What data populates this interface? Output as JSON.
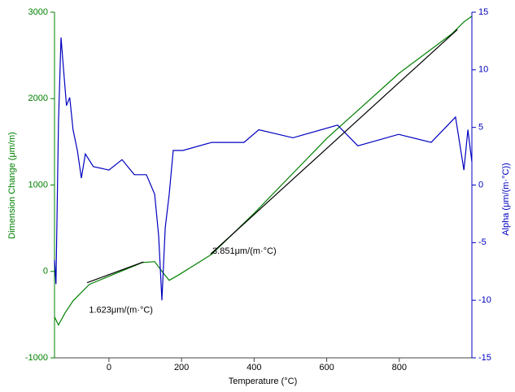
{
  "chart_data": {
    "type": "line",
    "xlabel": "Temperature (°C)",
    "ylabel": "Dimension Change (μm/m)",
    "y2label": "Alpha (μm/(m·°C))",
    "xlim": [
      -150,
      1000
    ],
    "xticks": [
      0,
      200,
      400,
      600,
      800
    ],
    "ylim": [
      -1000,
      3000
    ],
    "yticks": [
      -1000,
      0,
      1000,
      2000,
      3000
    ],
    "y2lim": [
      -15,
      15
    ],
    "y2ticks": [
      -15,
      -10,
      -5,
      0,
      5,
      10,
      15
    ],
    "series": [
      {
        "color": "#008000",
        "axis": "y",
        "x": [
          -150,
          -139,
          -121,
          -99,
          -54,
          0,
          92,
          126,
          148,
          166,
          193,
          283,
          401,
          601,
          800,
          944,
          978,
          1000
        ],
        "values": [
          -527,
          -620,
          -480,
          -340,
          -150,
          -56,
          103,
          113,
          -9,
          -103,
          -38,
          198,
          677,
          1543,
          2295,
          2747,
          2888,
          2954
        ]
      },
      {
        "color": "#0000c0",
        "axis": "y2",
        "x": [
          -150,
          -146,
          -139,
          -132,
          -126,
          -117,
          -108,
          -99,
          -87,
          -76,
          -65,
          -43,
          0,
          36,
          70,
          103,
          126,
          137,
          146,
          155,
          166,
          177,
          204,
          283,
          372,
          413,
          507,
          630,
          686,
          798,
          888,
          955,
          978,
          989,
          1000
        ],
        "values": [
          -6.5,
          -8.6,
          5.5,
          12.8,
          10.4,
          6.9,
          7.6,
          4.8,
          3.0,
          0.6,
          2.7,
          1.6,
          1.3,
          2.2,
          0.9,
          0.9,
          -0.8,
          -4.4,
          -10,
          -3.7,
          -0.8,
          3.0,
          3.0,
          3.7,
          3.7,
          4.8,
          4.1,
          5.2,
          3.4,
          4.4,
          3.7,
          5.9,
          1.3,
          4.8,
          2.0
        ]
      },
      {
        "color": "#000000",
        "axis": "y",
        "x": [
          -60,
          95
        ],
        "values": [
          -130,
          110
        ]
      },
      {
        "color": "#000000",
        "axis": "y",
        "x": [
          280,
          960
        ],
        "values": [
          200,
          2800
        ]
      }
    ],
    "annotations": [
      {
        "text": "1.623μm/(m·°C)",
        "x": -55,
        "y": -450
      },
      {
        "text": "3.851μm/(m·°C)",
        "x": 285,
        "y": 230
      }
    ]
  }
}
